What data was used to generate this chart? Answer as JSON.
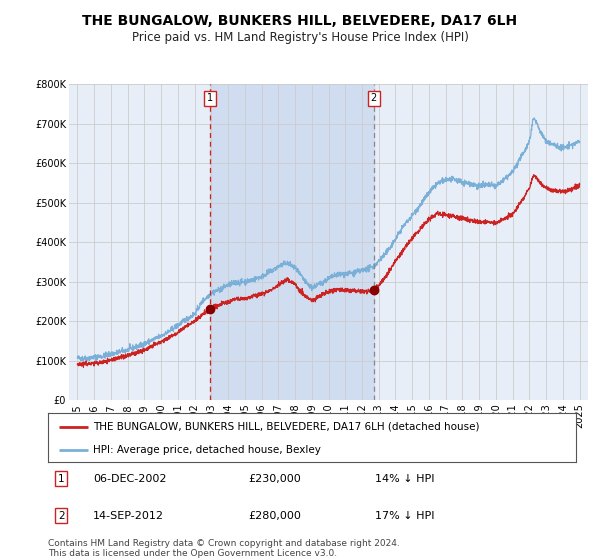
{
  "title": "THE BUNGALOW, BUNKERS HILL, BELVEDERE, DA17 6LH",
  "subtitle": "Price paid vs. HM Land Registry's House Price Index (HPI)",
  "background_color": "#ffffff",
  "plot_bg_color": "#e8eef8",
  "shaded_region": [
    2002.92,
    2012.71
  ],
  "vline1_x": 2002.92,
  "vline2_x": 2012.71,
  "marker1_x": 2002.92,
  "marker1_y": 230000,
  "marker2_x": 2012.71,
  "marker2_y": 280000,
  "ylim": [
    0,
    800000
  ],
  "yticks": [
    0,
    100000,
    200000,
    300000,
    400000,
    500000,
    600000,
    700000,
    800000
  ],
  "ytick_labels": [
    "£0",
    "£100K",
    "£200K",
    "£300K",
    "£400K",
    "£500K",
    "£600K",
    "£700K",
    "£800K"
  ],
  "xlim": [
    1994.5,
    2025.5
  ],
  "xticks": [
    1995,
    1996,
    1997,
    1998,
    1999,
    2000,
    2001,
    2002,
    2003,
    2004,
    2005,
    2006,
    2007,
    2008,
    2009,
    2010,
    2011,
    2012,
    2013,
    2014,
    2015,
    2016,
    2017,
    2018,
    2019,
    2020,
    2021,
    2022,
    2023,
    2024,
    2025
  ],
  "hpi_color": "#7ab0d8",
  "property_color": "#cc2222",
  "legend_label1": "THE BUNGALOW, BUNKERS HILL, BELVEDERE, DA17 6LH (detached house)",
  "legend_label2": "HPI: Average price, detached house, Bexley",
  "annotation1_label": "1",
  "annotation1_date": "06-DEC-2002",
  "annotation1_price": "£230,000",
  "annotation1_hpi": "14% ↓ HPI",
  "annotation2_label": "2",
  "annotation2_date": "14-SEP-2012",
  "annotation2_price": "£280,000",
  "annotation2_hpi": "17% ↓ HPI",
  "footer": "Contains HM Land Registry data © Crown copyright and database right 2024.\nThis data is licensed under the Open Government Licence v3.0.",
  "title_fontsize": 10,
  "subtitle_fontsize": 8.5,
  "tick_fontsize": 7,
  "legend_fontsize": 7.5,
  "footer_fontsize": 6.5
}
